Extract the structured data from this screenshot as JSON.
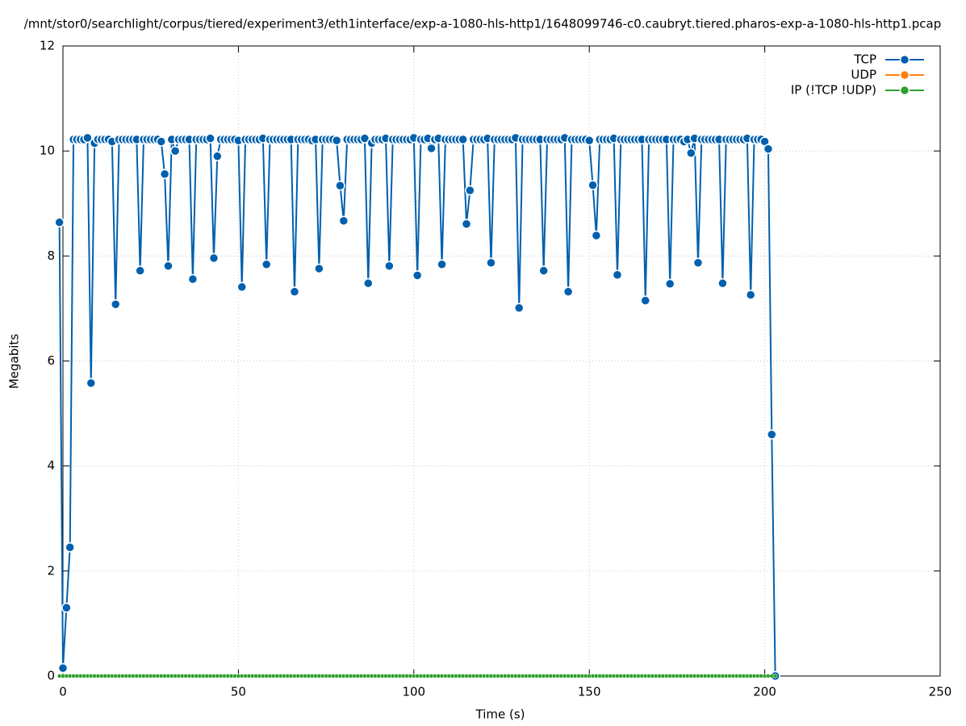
{
  "chart_data": {
    "type": "line",
    "title": "/mnt/stor0/searchlight/corpus/tiered/experiment3/eth1interface/exp-a-1080-hls-http1/1648099746-c0.caubryt.tiered.pharos-exp-a-1080-hls-http1.pcap",
    "x_label": "Time (s)",
    "y_label": "Megabits",
    "xlim": [
      0,
      250
    ],
    "xticks": [
      0,
      50,
      100,
      150,
      200,
      250
    ],
    "ylim": [
      0,
      12
    ],
    "yticks": [
      0,
      2,
      4,
      6,
      8,
      10,
      12
    ],
    "grid": true,
    "legend": "top-right",
    "x": [
      -1,
      0,
      1,
      2,
      3,
      4,
      5,
      6,
      7,
      8,
      9,
      10,
      11,
      12,
      13,
      14,
      15,
      16,
      17,
      18,
      19,
      20,
      21,
      22,
      23,
      24,
      25,
      26,
      27,
      28,
      29,
      30,
      31,
      32,
      33,
      34,
      35,
      36,
      37,
      38,
      39,
      40,
      41,
      42,
      43,
      44,
      45,
      46,
      47,
      48,
      49,
      50,
      51,
      52,
      53,
      54,
      55,
      56,
      57,
      58,
      59,
      60,
      61,
      62,
      63,
      64,
      65,
      66,
      67,
      68,
      69,
      70,
      71,
      72,
      73,
      74,
      75,
      76,
      77,
      78,
      79,
      80,
      81,
      82,
      83,
      84,
      85,
      86,
      87,
      88,
      89,
      90,
      91,
      92,
      93,
      94,
      95,
      96,
      97,
      98,
      99,
      100,
      101,
      102,
      103,
      104,
      105,
      106,
      107,
      108,
      109,
      110,
      111,
      112,
      113,
      114,
      115,
      116,
      117,
      118,
      119,
      120,
      121,
      122,
      123,
      124,
      125,
      126,
      127,
      128,
      129,
      130,
      131,
      132,
      133,
      134,
      135,
      136,
      137,
      138,
      139,
      140,
      141,
      142,
      143,
      144,
      145,
      146,
      147,
      148,
      149,
      150,
      151,
      152,
      153,
      154,
      155,
      156,
      157,
      158,
      159,
      160,
      161,
      162,
      163,
      164,
      165,
      166,
      167,
      168,
      169,
      170,
      171,
      172,
      173,
      174,
      175,
      176,
      177,
      178,
      179,
      180,
      181,
      182,
      183,
      184,
      185,
      186,
      187,
      188,
      189,
      190,
      191,
      192,
      193,
      194,
      195,
      196,
      197,
      198,
      199,
      200,
      201,
      202,
      203
    ],
    "series": [
      {
        "name": "TCP",
        "color": "#0060ad",
        "values": [
          8.64,
          0.15,
          1.3,
          2.45,
          10.22,
          10.22,
          10.22,
          10.22,
          10.25,
          5.58,
          10.15,
          10.22,
          10.22,
          10.22,
          10.22,
          10.18,
          7.08,
          10.22,
          10.22,
          10.22,
          10.22,
          10.22,
          10.22,
          7.72,
          10.22,
          10.22,
          10.22,
          10.22,
          10.22,
          10.18,
          9.56,
          7.81,
          10.22,
          10.0,
          10.22,
          10.22,
          10.22,
          10.22,
          7.56,
          10.22,
          10.22,
          10.22,
          10.22,
          10.24,
          7.96,
          9.9,
          10.22,
          10.22,
          10.22,
          10.22,
          10.22,
          10.2,
          7.41,
          10.22,
          10.22,
          10.22,
          10.22,
          10.22,
          10.24,
          7.84,
          10.22,
          10.22,
          10.22,
          10.22,
          10.22,
          10.22,
          10.22,
          7.32,
          10.22,
          10.22,
          10.22,
          10.22,
          10.2,
          10.22,
          7.76,
          10.22,
          10.22,
          10.22,
          10.22,
          10.2,
          9.34,
          8.67,
          10.22,
          10.22,
          10.22,
          10.22,
          10.22,
          10.24,
          7.48,
          10.15,
          10.22,
          10.22,
          10.22,
          10.24,
          7.81,
          10.22,
          10.22,
          10.22,
          10.22,
          10.22,
          10.22,
          10.25,
          7.63,
          10.22,
          10.22,
          10.24,
          10.05,
          10.22,
          10.24,
          7.84,
          10.22,
          10.22,
          10.22,
          10.22,
          10.22,
          10.22,
          8.61,
          9.25,
          10.22,
          10.22,
          10.22,
          10.22,
          10.24,
          7.87,
          10.22,
          10.22,
          10.22,
          10.22,
          10.22,
          10.22,
          10.25,
          7.01,
          10.22,
          10.22,
          10.22,
          10.22,
          10.22,
          10.22,
          7.72,
          10.22,
          10.22,
          10.22,
          10.22,
          10.22,
          10.25,
          7.32,
          10.22,
          10.22,
          10.22,
          10.22,
          10.22,
          10.2,
          9.35,
          8.39,
          10.22,
          10.22,
          10.22,
          10.22,
          10.24,
          7.64,
          10.22,
          10.22,
          10.22,
          10.22,
          10.22,
          10.22,
          10.22,
          7.15,
          10.22,
          10.22,
          10.22,
          10.22,
          10.22,
          10.22,
          7.47,
          10.22,
          10.22,
          10.22,
          10.18,
          10.22,
          9.96,
          10.24,
          7.87,
          10.22,
          10.22,
          10.22,
          10.22,
          10.22,
          10.22,
          7.48,
          10.22,
          10.22,
          10.22,
          10.22,
          10.22,
          10.22,
          10.24,
          7.26,
          10.22,
          10.22,
          10.22,
          10.18,
          10.04,
          4.6,
          0
        ]
      },
      {
        "name": "UDP",
        "color": "#ff7f0e",
        "values": [
          0,
          0,
          0,
          0,
          0,
          0,
          0,
          0,
          0,
          0,
          0,
          0,
          0,
          0,
          0,
          0,
          0,
          0,
          0,
          0,
          0,
          0,
          0,
          0,
          0,
          0,
          0,
          0,
          0,
          0,
          0,
          0,
          0,
          0,
          0,
          0,
          0,
          0,
          0,
          0,
          0,
          0,
          0,
          0,
          0,
          0,
          0,
          0,
          0,
          0,
          0,
          0,
          0,
          0,
          0,
          0,
          0,
          0,
          0,
          0,
          0,
          0,
          0,
          0,
          0,
          0,
          0,
          0,
          0,
          0,
          0,
          0,
          0,
          0,
          0,
          0,
          0,
          0,
          0,
          0,
          0,
          0,
          0,
          0,
          0,
          0,
          0,
          0,
          0,
          0,
          0,
          0,
          0,
          0,
          0,
          0,
          0,
          0,
          0,
          0,
          0,
          0,
          0,
          0,
          0,
          0,
          0,
          0,
          0,
          0,
          0,
          0,
          0,
          0,
          0,
          0,
          0,
          0,
          0,
          0,
          0,
          0,
          0,
          0,
          0,
          0,
          0,
          0,
          0,
          0,
          0,
          0,
          0,
          0,
          0,
          0,
          0,
          0,
          0,
          0,
          0,
          0,
          0,
          0,
          0,
          0,
          0,
          0,
          0,
          0,
          0,
          0,
          0,
          0,
          0,
          0,
          0,
          0,
          0,
          0,
          0,
          0,
          0,
          0,
          0,
          0,
          0,
          0,
          0,
          0,
          0,
          0,
          0,
          0,
          0,
          0,
          0,
          0,
          0,
          0,
          0,
          0,
          0,
          0,
          0,
          0,
          0,
          0,
          0,
          0,
          0,
          0,
          0,
          0,
          0,
          0,
          0,
          0,
          0,
          0,
          0,
          0,
          0,
          0,
          0
        ]
      },
      {
        "name": "IP (!TCP  !UDP)",
        "color": "#2ca02c",
        "values": [
          0,
          0,
          0,
          0,
          0,
          0,
          0,
          0,
          0,
          0,
          0,
          0,
          0,
          0,
          0,
          0,
          0,
          0,
          0,
          0,
          0,
          0,
          0,
          0,
          0,
          0,
          0,
          0,
          0,
          0,
          0,
          0,
          0,
          0,
          0,
          0,
          0,
          0,
          0,
          0,
          0,
          0,
          0,
          0,
          0,
          0,
          0,
          0,
          0,
          0,
          0,
          0,
          0,
          0,
          0,
          0,
          0,
          0,
          0,
          0,
          0,
          0,
          0,
          0,
          0,
          0,
          0,
          0,
          0,
          0,
          0,
          0,
          0,
          0,
          0,
          0,
          0,
          0,
          0,
          0,
          0,
          0,
          0,
          0,
          0,
          0,
          0,
          0,
          0,
          0,
          0,
          0,
          0,
          0,
          0,
          0,
          0,
          0,
          0,
          0,
          0,
          0,
          0,
          0,
          0,
          0,
          0,
          0,
          0,
          0,
          0,
          0,
          0,
          0,
          0,
          0,
          0,
          0,
          0,
          0,
          0,
          0,
          0,
          0,
          0,
          0,
          0,
          0,
          0,
          0,
          0,
          0,
          0,
          0,
          0,
          0,
          0,
          0,
          0,
          0,
          0,
          0,
          0,
          0,
          0,
          0,
          0,
          0,
          0,
          0,
          0,
          0,
          0,
          0,
          0,
          0,
          0,
          0,
          0,
          0,
          0,
          0,
          0,
          0,
          0,
          0,
          0,
          0,
          0,
          0,
          0,
          0,
          0,
          0,
          0,
          0,
          0,
          0,
          0,
          0,
          0,
          0,
          0,
          0,
          0,
          0,
          0,
          0,
          0,
          0,
          0,
          0,
          0,
          0,
          0,
          0,
          0,
          0,
          0,
          0,
          0,
          0,
          0,
          0,
          0
        ]
      }
    ]
  }
}
